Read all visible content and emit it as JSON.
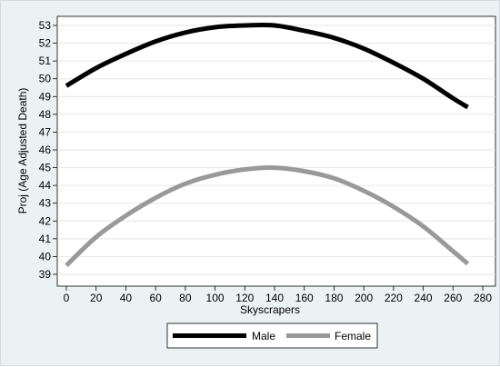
{
  "chart_data": {
    "type": "line",
    "xlabel": "Skyscrapers",
    "ylabel": "Proj (Age Adjusted Death)",
    "xlim": [
      0,
      280
    ],
    "ylim": [
      39,
      53
    ],
    "xticks": [
      0,
      20,
      40,
      60,
      80,
      100,
      120,
      140,
      160,
      180,
      200,
      220,
      240,
      260,
      280
    ],
    "yticks": [
      39,
      40,
      41,
      42,
      43,
      44,
      45,
      46,
      47,
      48,
      49,
      50,
      51,
      52,
      53
    ],
    "grid": "horizontal",
    "legend_position": "bottom",
    "series": [
      {
        "name": "Male",
        "color": "#000000",
        "x": [
          0,
          20,
          40,
          60,
          80,
          100,
          120,
          140,
          160,
          180,
          200,
          220,
          240,
          260,
          270
        ],
        "y": [
          49.6,
          50.6,
          51.4,
          52.1,
          52.6,
          52.9,
          53.0,
          53.0,
          52.7,
          52.3,
          51.7,
          50.9,
          50.0,
          48.9,
          48.4
        ]
      },
      {
        "name": "Female",
        "color": "#999999",
        "x": [
          0,
          20,
          40,
          60,
          80,
          100,
          120,
          140,
          160,
          180,
          200,
          220,
          240,
          260,
          270
        ],
        "y": [
          39.5,
          41.1,
          42.3,
          43.3,
          44.1,
          44.6,
          44.9,
          45.0,
          44.8,
          44.4,
          43.7,
          42.8,
          41.7,
          40.3,
          39.6
        ]
      }
    ]
  }
}
